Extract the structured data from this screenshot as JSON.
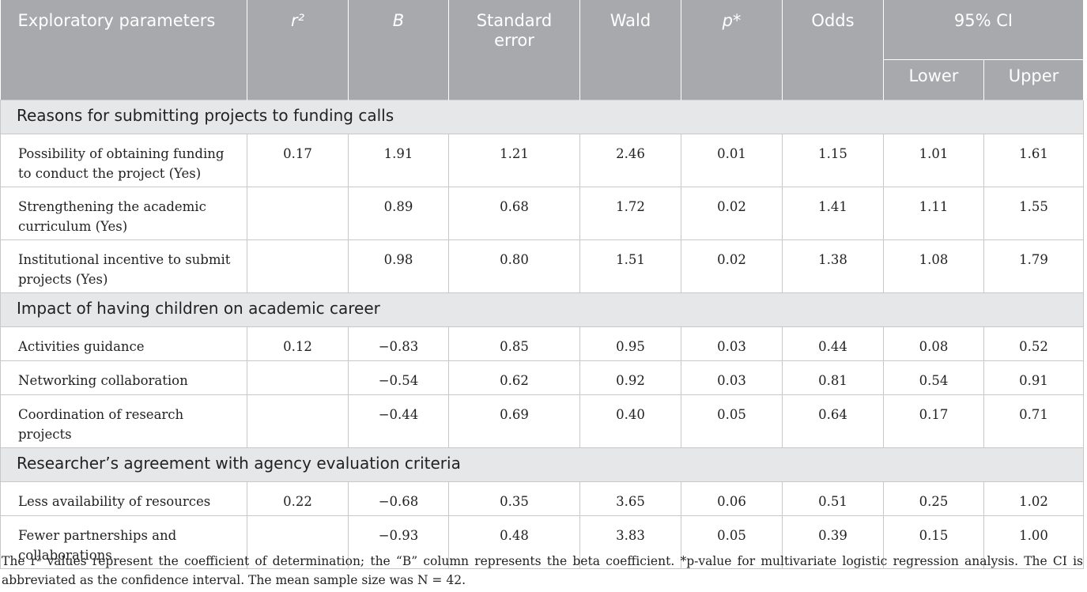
{
  "table": {
    "header": [
      "Exploratory parameters",
      "r²",
      "B",
      "Standard error",
      "Wald",
      "p*",
      "Odds",
      "95% CI"
    ],
    "subheader": [
      "Lower",
      "Upper"
    ],
    "sections": [
      {
        "title": "Reasons for submitting projects to funding calls",
        "rows": [
          {
            "label": "Possibility of obtaining funding to conduct the project (Yes)",
            "r2": "0.17",
            "values": [
              "1.91",
              "1.21",
              "2.46",
              "0.01",
              "1.15",
              "1.01",
              "1.61"
            ]
          },
          {
            "label": "Strengthening the academic curriculum (Yes)",
            "values": [
              "0.89",
              "0.68",
              "1.72",
              "0.02",
              "1.41",
              "1.11",
              "1.55"
            ]
          },
          {
            "label": "Institutional incentive to submit projects (Yes)",
            "values": [
              "0.98",
              "0.80",
              "1.51",
              "0.02",
              "1.38",
              "1.08",
              "1.79"
            ]
          }
        ]
      },
      {
        "title": "Impact of having children on academic career",
        "rows": [
          {
            "label": "Activities guidance",
            "r2": "0.12",
            "values": [
              "−0.83",
              "0.85",
              "0.95",
              "0.03",
              "0.44",
              "0.08",
              "0.52"
            ]
          },
          {
            "label": "Networking collaboration",
            "values": [
              "−0.54",
              "0.62",
              "0.92",
              "0.03",
              "0.81",
              "0.54",
              "0.91"
            ]
          },
          {
            "label": "Coordination of research projects",
            "values": [
              "−0.44",
              "0.69",
              "0.40",
              "0.05",
              "0.64",
              "0.17",
              "0.71"
            ]
          }
        ]
      },
      {
        "title": "Researcher’s agreement with agency evaluation criteria",
        "rows": [
          {
            "label": "Less availability of resources",
            "r2": "0.22",
            "values": [
              "−0.68",
              "0.35",
              "3.65",
              "0.06",
              "0.51",
              "0.25",
              "1.02"
            ]
          },
          {
            "label": "Fewer partnerships and collaborations",
            "values": [
              "−0.93",
              "0.48",
              "3.83",
              "0.05",
              "0.39",
              "0.15",
              "1.00"
            ]
          }
        ]
      }
    ],
    "footnote": "The r² values represent the coefficient of determination; the “B” column represents the beta coefficient. *p-value for multivariate logistic regression analysis. The CI is abbreviated as the confidence interval. The mean sample size was N = 42."
  }
}
